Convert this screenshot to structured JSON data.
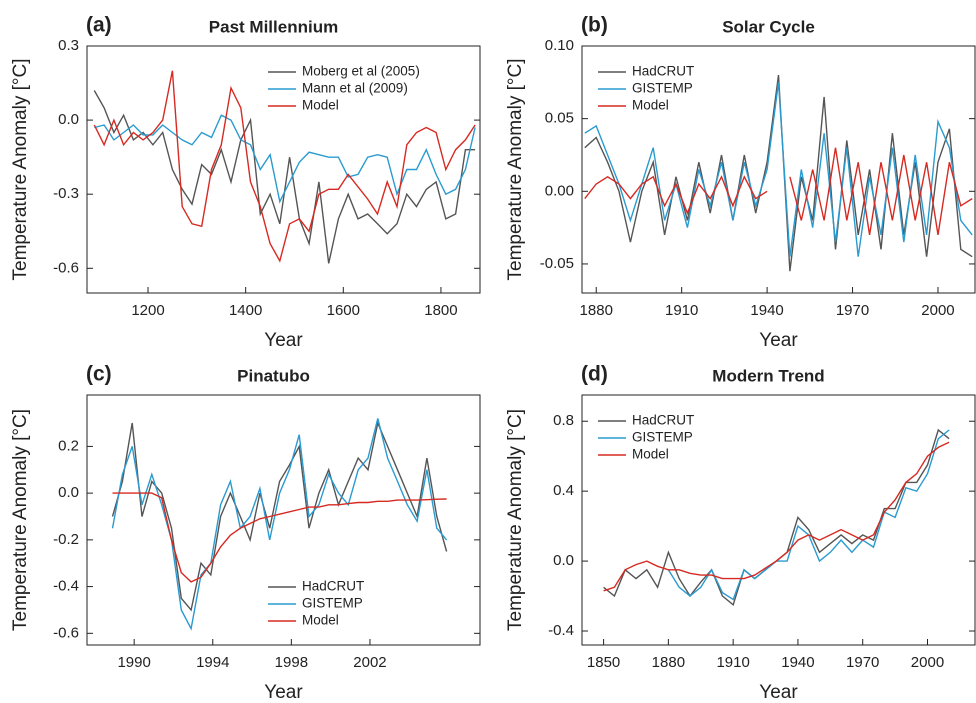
{
  "chart_data": [
    {
      "type": "line",
      "panel_label": "(a)",
      "title": "Past Millennium",
      "x_label": "Year",
      "y_label": "Temperature Anomaly [°C]",
      "legend": "upper right",
      "x": [
        1090,
        1110,
        1130,
        1150,
        1170,
        1190,
        1210,
        1230,
        1250,
        1270,
        1290,
        1310,
        1330,
        1350,
        1370,
        1390,
        1410,
        1430,
        1450,
        1470,
        1490,
        1510,
        1530,
        1550,
        1570,
        1590,
        1610,
        1630,
        1650,
        1670,
        1690,
        1710,
        1730,
        1750,
        1770,
        1790,
        1810,
        1830,
        1850,
        1870
      ],
      "series": [
        {
          "name": "Moberg et al (2005)",
          "color": "#555555",
          "values": [
            0.12,
            0.05,
            -0.05,
            0.02,
            -0.08,
            -0.05,
            -0.1,
            -0.05,
            -0.2,
            -0.28,
            -0.34,
            -0.18,
            -0.22,
            -0.12,
            -0.25,
            -0.08,
            0.0,
            -0.38,
            -0.3,
            -0.42,
            -0.15,
            -0.4,
            -0.5,
            -0.25,
            -0.58,
            -0.4,
            -0.3,
            -0.4,
            -0.38,
            -0.42,
            -0.46,
            -0.42,
            -0.3,
            -0.35,
            -0.28,
            -0.25,
            -0.4,
            -0.38,
            -0.12,
            -0.12
          ]
        },
        {
          "name": "Mann et al (2009)",
          "color": "#2a9bd0",
          "values": [
            -0.03,
            -0.02,
            -0.08,
            -0.05,
            -0.02,
            -0.06,
            -0.06,
            -0.02,
            -0.05,
            -0.08,
            -0.1,
            -0.05,
            -0.07,
            0.02,
            0.0,
            -0.08,
            -0.1,
            -0.2,
            -0.14,
            -0.33,
            -0.25,
            -0.17,
            -0.13,
            -0.14,
            -0.15,
            -0.15,
            -0.23,
            -0.22,
            -0.15,
            -0.14,
            -0.15,
            -0.3,
            -0.2,
            -0.2,
            -0.12,
            -0.22,
            -0.3,
            -0.28,
            -0.2,
            -0.03
          ]
        },
        {
          "name": "Model",
          "color": "#d62a22",
          "values": [
            -0.02,
            -0.1,
            0.0,
            -0.1,
            -0.05,
            -0.08,
            -0.05,
            0.0,
            0.2,
            -0.35,
            -0.42,
            -0.43,
            -0.2,
            -0.1,
            0.13,
            0.05,
            -0.25,
            -0.35,
            -0.5,
            -0.57,
            -0.42,
            -0.4,
            -0.45,
            -0.3,
            -0.28,
            -0.28,
            -0.22,
            -0.27,
            -0.32,
            -0.38,
            -0.25,
            -0.35,
            -0.1,
            -0.05,
            -0.03,
            -0.05,
            -0.2,
            -0.12,
            -0.08,
            -0.02
          ]
        }
      ],
      "xlim": [
        1075,
        1880
      ],
      "xticks": [
        1200,
        1400,
        1600,
        1800
      ],
      "ylim": [
        -0.7,
        0.3
      ],
      "yticks": [
        0.3,
        {
          "value": 0,
          "label": "0.0"
        },
        -0.3,
        -0.6
      ]
    },
    {
      "type": "line",
      "panel_label": "(b)",
      "title": "Solar Cycle",
      "x_label": "Year",
      "y_label": "Temperature Anomaly [°C]",
      "legend": "upper left",
      "x": [
        1876,
        1880,
        1884,
        1888,
        1892,
        1896,
        1900,
        1904,
        1908,
        1912,
        1916,
        1920,
        1924,
        1928,
        1932,
        1936,
        1940,
        1944,
        1948,
        1952,
        1956,
        1960,
        1964,
        1968,
        1972,
        1976,
        1980,
        1984,
        1988,
        1992,
        1996,
        2000,
        2004,
        2008,
        2012
      ],
      "series": [
        {
          "name": "HadCRUT",
          "color": "#555555",
          "values": [
            0.03,
            0.037,
            0.02,
            0.0,
            -0.035,
            0.0,
            0.02,
            -0.03,
            0.01,
            -0.02,
            0.02,
            -0.015,
            0.025,
            -0.02,
            0.025,
            -0.015,
            0.02,
            0.08,
            -0.055,
            0.01,
            -0.02,
            0.065,
            -0.04,
            0.035,
            -0.03,
            0.015,
            -0.04,
            0.04,
            -0.03,
            0.02,
            -0.045,
            0.02,
            0.043,
            -0.04,
            -0.045
          ]
        },
        {
          "name": "GISTEMP",
          "color": "#2a9bd0",
          "values": [
            0.04,
            0.045,
            0.025,
            0.005,
            -0.02,
            0.005,
            0.03,
            -0.02,
            0.005,
            -0.025,
            0.015,
            -0.01,
            0.02,
            -0.02,
            0.02,
            -0.01,
            0.015,
            0.075,
            -0.045,
            0.015,
            -0.025,
            0.04,
            -0.035,
            0.03,
            -0.045,
            0.01,
            -0.03,
            0.03,
            -0.035,
            0.025,
            -0.03,
            0.048,
            0.03,
            -0.02,
            -0.03
          ]
        },
        {
          "name": "Model",
          "color": "#d62a22",
          "values": [
            -0.005,
            0.005,
            0.01,
            0.005,
            -0.005,
            0.005,
            0.01,
            -0.01,
            0.005,
            -0.015,
            0.005,
            -0.005,
            0.01,
            -0.01,
            0.01,
            -0.005,
            0.0,
            null,
            0.01,
            -0.02,
            0.015,
            -0.02,
            0.03,
            -0.02,
            0.02,
            -0.03,
            0.02,
            -0.02,
            0.025,
            -0.02,
            0.02,
            -0.03,
            0.02,
            -0.01,
            -0.005
          ]
        }
      ],
      "xlim": [
        1875,
        2013
      ],
      "xticks": [
        1880,
        1910,
        1940,
        1970,
        2000
      ],
      "ylim": [
        -0.07,
        0.1
      ],
      "yticks": [
        {
          "value": 0.1,
          "label": "0.10"
        },
        0.05,
        {
          "value": 0,
          "label": "0.00"
        },
        -0.05
      ]
    },
    {
      "type": "line",
      "panel_label": "(c)",
      "title": "Pinatubo",
      "x_label": "Year",
      "y_label": "Temperature Anomaly [°C]",
      "legend": "lower right",
      "x": [
        1988.9,
        1989.4,
        1989.9,
        1990.4,
        1990.9,
        1991.4,
        1991.9,
        1992.4,
        1992.9,
        1993.4,
        1993.9,
        1994.4,
        1994.9,
        1995.4,
        1995.9,
        1996.4,
        1996.9,
        1997.4,
        1997.9,
        1998.4,
        1998.9,
        1999.4,
        1999.9,
        2000.4,
        2000.9,
        2001.4,
        2001.9,
        2002.4,
        2002.9,
        2003.4,
        2003.9,
        2004.4,
        2004.9,
        2005.4,
        2005.9
      ],
      "series": [
        {
          "name": "HadCRUT",
          "color": "#555555",
          "values": [
            -0.1,
            0.05,
            0.3,
            -0.1,
            0.05,
            0.0,
            -0.15,
            -0.45,
            -0.5,
            -0.3,
            -0.35,
            -0.1,
            0.0,
            -0.1,
            -0.2,
            0.0,
            -0.15,
            0.05,
            0.12,
            0.2,
            -0.15,
            0.0,
            0.1,
            -0.05,
            0.05,
            0.15,
            0.1,
            0.3,
            0.2,
            0.1,
            0.0,
            -0.1,
            0.15,
            -0.1,
            -0.25
          ]
        },
        {
          "name": "GISTEMP",
          "color": "#2a9bd0",
          "values": [
            -0.15,
            0.08,
            0.2,
            -0.05,
            0.08,
            -0.05,
            -0.2,
            -0.5,
            -0.58,
            -0.35,
            -0.3,
            -0.05,
            0.05,
            -0.15,
            -0.1,
            0.02,
            -0.2,
            0.0,
            0.1,
            0.25,
            -0.1,
            -0.05,
            0.08,
            0.0,
            -0.05,
            0.1,
            0.15,
            0.32,
            0.15,
            0.05,
            -0.05,
            -0.12,
            0.1,
            -0.15,
            -0.2
          ]
        },
        {
          "name": "Model",
          "color": "#d62a22",
          "values": [
            0,
            0,
            0,
            0,
            0,
            -0.02,
            -0.2,
            -0.34,
            -0.38,
            -0.36,
            -0.3,
            -0.23,
            -0.18,
            -0.15,
            -0.13,
            -0.11,
            -0.1,
            -0.09,
            -0.08,
            -0.07,
            -0.06,
            -0.06,
            -0.05,
            -0.05,
            -0.045,
            -0.04,
            -0.04,
            -0.035,
            -0.035,
            -0.03,
            -0.03,
            -0.03,
            -0.028,
            -0.026,
            -0.025
          ]
        }
      ],
      "xlim": [
        1987.6,
        2007.6
      ],
      "xticks": [
        1990,
        1994,
        1998,
        2002
      ],
      "ylim": [
        -0.65,
        0.42
      ],
      "yticks": [
        0.2,
        {
          "value": 0,
          "label": "0.0"
        },
        -0.2,
        -0.4,
        -0.6
      ]
    },
    {
      "type": "line",
      "panel_label": "(d)",
      "title": "Modern Trend",
      "x_label": "Year",
      "y_label": "Temperature Anomaly [°C]",
      "legend": "upper left",
      "x": [
        1850,
        1855,
        1860,
        1865,
        1870,
        1875,
        1880,
        1885,
        1890,
        1895,
        1900,
        1905,
        1910,
        1915,
        1920,
        1925,
        1930,
        1935,
        1940,
        1945,
        1950,
        1955,
        1960,
        1965,
        1970,
        1975,
        1980,
        1985,
        1990,
        1995,
        2000,
        2005,
        2010
      ],
      "series": [
        {
          "name": "HadCRUT",
          "color": "#555555",
          "values": [
            -0.15,
            -0.2,
            -0.05,
            -0.1,
            -0.05,
            -0.15,
            0.05,
            -0.1,
            -0.2,
            -0.12,
            -0.05,
            -0.2,
            -0.25,
            -0.05,
            -0.1,
            -0.05,
            0.0,
            0.05,
            0.25,
            0.18,
            0.05,
            0.1,
            0.15,
            0.1,
            0.15,
            0.12,
            0.3,
            0.3,
            0.45,
            0.45,
            0.55,
            0.75,
            0.7
          ]
        },
        {
          "name": "GISTEMP",
          "color": "#2a9bd0",
          "values": [
            null,
            null,
            null,
            null,
            null,
            null,
            -0.05,
            -0.15,
            -0.2,
            -0.15,
            -0.05,
            -0.18,
            -0.22,
            -0.05,
            -0.1,
            -0.05,
            0.0,
            0.0,
            0.2,
            0.15,
            0.0,
            0.05,
            0.12,
            0.05,
            0.12,
            0.08,
            0.28,
            0.25,
            0.42,
            0.4,
            0.5,
            0.7,
            0.75
          ]
        },
        {
          "name": "Model",
          "color": "#d62a22",
          "values": [
            -0.17,
            -0.15,
            -0.05,
            -0.02,
            0.0,
            -0.03,
            -0.05,
            -0.05,
            -0.07,
            -0.08,
            -0.08,
            -0.1,
            -0.1,
            -0.1,
            -0.08,
            -0.04,
            0.0,
            0.05,
            0.12,
            0.15,
            0.12,
            0.15,
            0.18,
            0.15,
            0.12,
            0.15,
            0.28,
            0.35,
            0.45,
            0.5,
            0.6,
            0.65,
            0.68
          ]
        }
      ],
      "xlim": [
        1840,
        2022
      ],
      "xticks": [
        1850,
        1880,
        1910,
        1940,
        1970,
        2000
      ],
      "ylim": [
        -0.48,
        0.95
      ],
      "yticks": [
        0.8,
        0.4,
        {
          "value": 0,
          "label": "0.0"
        },
        -0.4
      ]
    }
  ]
}
